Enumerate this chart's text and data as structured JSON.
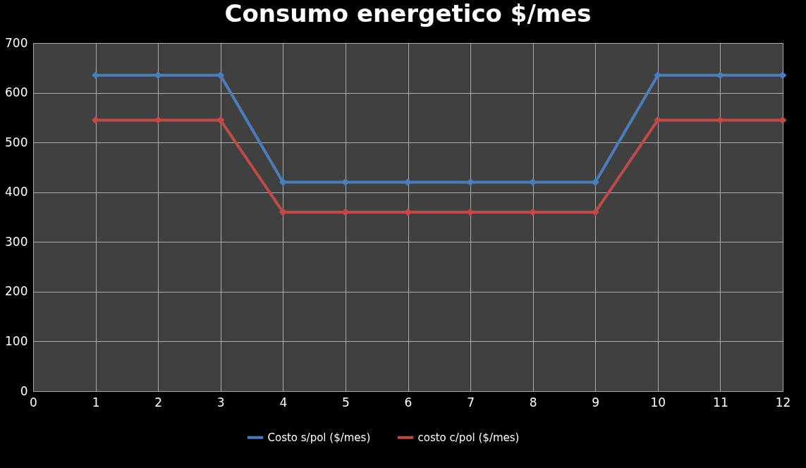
{
  "chart_data": {
    "type": "line",
    "title": "Consumo energetico $/mes",
    "x": [
      1,
      2,
      3,
      4,
      5,
      6,
      7,
      8,
      9,
      10,
      11,
      12
    ],
    "series": [
      {
        "name": "Costo s/pol ($/mes)",
        "color": "#4a7ebb",
        "values": [
          635,
          635,
          635,
          420,
          420,
          420,
          420,
          420,
          420,
          635,
          635,
          635
        ]
      },
      {
        "name": "costo c/pol ($/mes)",
        "color": "#be4b48",
        "values": [
          545,
          545,
          545,
          360,
          360,
          360,
          360,
          360,
          360,
          545,
          545,
          545
        ]
      }
    ],
    "xlim": [
      0,
      12
    ],
    "xticks": [
      0,
      1,
      2,
      3,
      4,
      5,
      6,
      7,
      8,
      9,
      10,
      11,
      12
    ],
    "ylim": [
      0,
      700
    ],
    "yticks": [
      0,
      100,
      200,
      300,
      400,
      500,
      600,
      700
    ],
    "grid": true,
    "legend": "bottom",
    "marker": "diamond",
    "line_style": "solid"
  }
}
